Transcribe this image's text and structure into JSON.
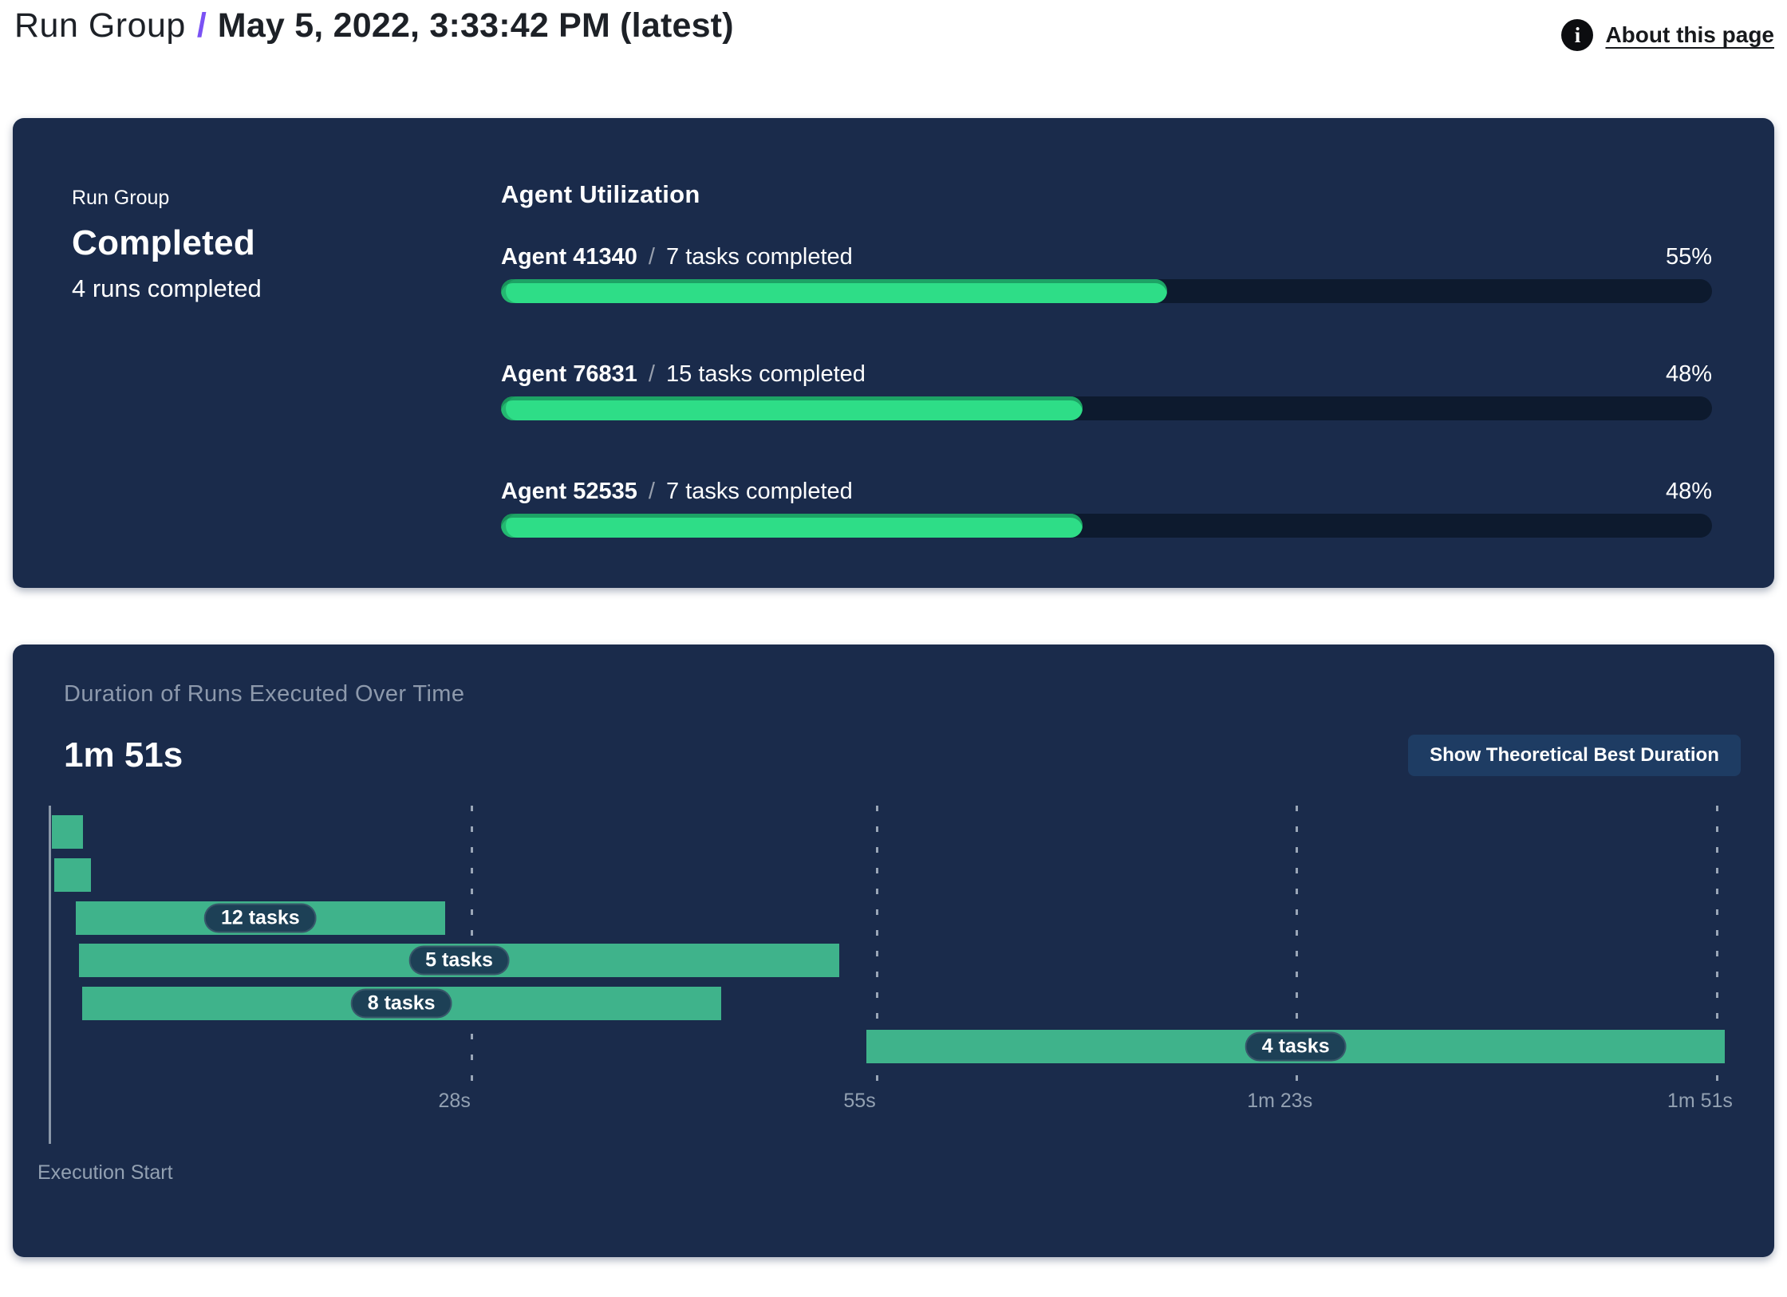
{
  "header": {
    "breadcrumb_root": "Run Group",
    "separator": "/",
    "title": "May 5, 2022, 3:33:42 PM (latest)",
    "about_label": "About this page",
    "info_icon_glyph": "i"
  },
  "run_group_panel": {
    "label": "Run Group",
    "status": "Completed",
    "runs_summary": "4 runs completed",
    "utilization": {
      "title": "Agent Utilization",
      "agents": [
        {
          "name": "Agent 41340",
          "separator": "/",
          "tasks": "7 tasks completed",
          "percent_label": "55%",
          "percent": 55
        },
        {
          "name": "Agent 76831",
          "separator": "/",
          "tasks": "15 tasks completed",
          "percent_label": "48%",
          "percent": 48
        },
        {
          "name": "Agent 52535",
          "separator": "/",
          "tasks": "7 tasks completed",
          "percent_label": "48%",
          "percent": 48
        }
      ]
    }
  },
  "duration_panel": {
    "title": "Duration of Runs Executed Over Time",
    "total_duration": "1m 51s",
    "button_label": "Show Theoretical Best Duration",
    "x_axis_label": "Execution Start",
    "chart_data": {
      "type": "gantt",
      "time_unit": "seconds",
      "x_range": [
        0,
        111.6
      ],
      "axis_ticks": [
        {
          "t": 28,
          "label": "28s"
        },
        {
          "t": 55,
          "label": "55s"
        },
        {
          "t": 83,
          "label": "1m 23s"
        },
        {
          "t": 111,
          "label": "1m 51s"
        }
      ],
      "bars": [
        {
          "start": 0.1,
          "end": 2.2,
          "label": ""
        },
        {
          "start": 0.25,
          "end": 2.7,
          "label": ""
        },
        {
          "start": 1.7,
          "end": 26.3,
          "label": "12 tasks"
        },
        {
          "start": 1.9,
          "end": 52.6,
          "label": "5 tasks"
        },
        {
          "start": 2.1,
          "end": 44.7,
          "label": "8 tasks"
        },
        {
          "start": 54.4,
          "end": 111.6,
          "label": "4 tasks"
        }
      ]
    }
  },
  "colors": {
    "panel_bg": "#1a2b4b",
    "progress_fill": "#2edd87",
    "progress_track": "#0d1a2e",
    "gantt_bar": "#3fb38b",
    "pill_bg": "#1d4056",
    "accent_slash": "#7a52f4",
    "muted_title": "#8d99ac",
    "axis_text": "#93a1b2",
    "button_bg": "#1e3c63"
  }
}
